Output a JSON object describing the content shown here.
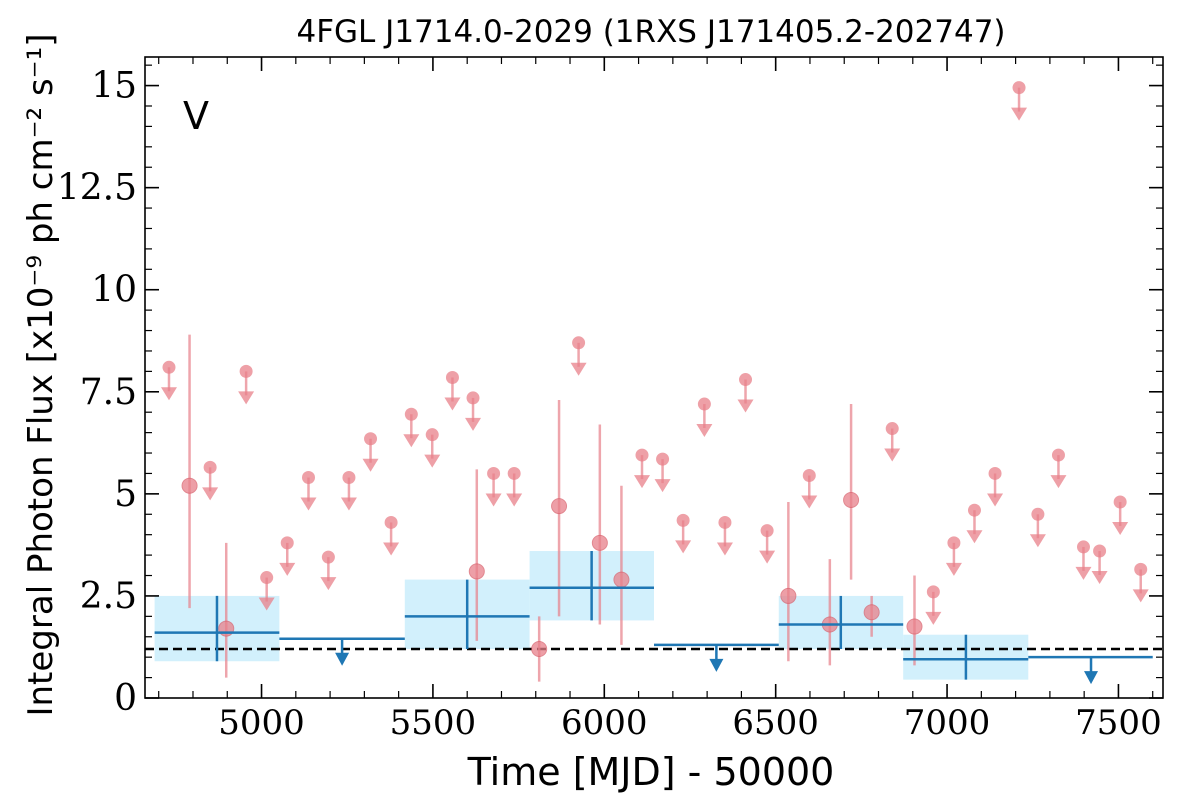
{
  "chart_data": {
    "type": "scatter",
    "title": "4FGL J1714.0-2029 (1RXS J171405.2-202747)",
    "xlabel": "Time [MJD] - 50000",
    "ylabel": "Integral Photon Flux [x10⁻⁹ ph cm⁻² s⁻¹]",
    "annotation": "V",
    "xlim": [
      4660,
      7630
    ],
    "ylim": [
      0,
      15.7
    ],
    "xticks": [
      5000,
      5500,
      6000,
      6500,
      7000,
      7500
    ],
    "xtick_labels": [
      "5000",
      "5500",
      "6000",
      "6500",
      "7000",
      "7500"
    ],
    "yticks": [
      0,
      2.5,
      5,
      7.5,
      10,
      12.5,
      15
    ],
    "ytick_labels": [
      "0",
      "2.5",
      "5",
      "7.5",
      "10",
      "12.5",
      "15"
    ],
    "dashed_line_y": 1.2,
    "colors": {
      "fine_bins": "#e8808a",
      "coarse_bins": "#1f77b4",
      "coarse_band": "#cdeefc",
      "dashed": "#000000"
    },
    "series": [
      {
        "name": "",
        "role": "fine-bin detections",
        "points": [
          {
            "x": 4790,
            "y": 5.2,
            "ylo": 2.2,
            "yhi": 8.9
          },
          {
            "x": 4897,
            "y": 1.7,
            "ylo": 0.5,
            "yhi": 3.8
          },
          {
            "x": 5628,
            "y": 3.1,
            "ylo": 1.4,
            "yhi": 5.6
          },
          {
            "x": 5810,
            "y": 1.2,
            "ylo": 0.4,
            "yhi": 2.0
          },
          {
            "x": 5868,
            "y": 4.7,
            "ylo": 2.0,
            "yhi": 7.3
          },
          {
            "x": 5987,
            "y": 3.8,
            "ylo": 1.8,
            "yhi": 6.7
          },
          {
            "x": 6050,
            "y": 2.9,
            "ylo": 1.3,
            "yhi": 5.2
          },
          {
            "x": 6537,
            "y": 2.5,
            "ylo": 0.9,
            "yhi": 4.8
          },
          {
            "x": 6658,
            "y": 1.8,
            "ylo": 0.8,
            "yhi": 3.4
          },
          {
            "x": 6720,
            "y": 4.85,
            "ylo": 2.9,
            "yhi": 7.2
          },
          {
            "x": 6780,
            "y": 2.1,
            "ylo": 1.5,
            "yhi": 2.5
          },
          {
            "x": 6905,
            "y": 1.75,
            "ylo": 0.8,
            "yhi": 3.0
          }
        ]
      },
      {
        "name": "",
        "role": "fine-bin upper limits",
        "x": [
          4730,
          4850,
          4955,
          5015,
          5075,
          5137,
          5195,
          5255,
          5318,
          5378,
          5437,
          5498,
          5557,
          5617,
          5677,
          5737,
          5925,
          6110,
          6170,
          6230,
          6292,
          6352,
          6412,
          6475,
          6598,
          6840,
          6960,
          7020,
          7080,
          7140,
          7210,
          7265,
          7325,
          7398,
          7445,
          7505,
          7565
        ],
        "y": [
          8.1,
          5.65,
          8.0,
          2.95,
          3.8,
          5.4,
          3.45,
          5.4,
          6.35,
          4.3,
          6.95,
          6.45,
          7.85,
          7.35,
          5.5,
          5.5,
          8.7,
          5.95,
          5.85,
          4.35,
          7.2,
          4.3,
          7.8,
          4.1,
          5.45,
          6.6,
          2.6,
          3.8,
          4.6,
          5.5,
          14.95,
          4.5,
          5.95,
          3.7,
          3.6,
          4.8,
          3.15
        ]
      },
      {
        "name": "",
        "role": "coarse-bin detections",
        "points": [
          {
            "x": 4870,
            "xlo": 4688,
            "xhi": 5052,
            "y": 1.6,
            "ylo": 0.9,
            "yhi": 2.5
          },
          {
            "x": 5600,
            "xlo": 5418,
            "xhi": 5782,
            "y": 2.0,
            "ylo": 1.2,
            "yhi": 2.9
          },
          {
            "x": 5963,
            "xlo": 5782,
            "xhi": 6145,
            "y": 2.7,
            "ylo": 1.9,
            "yhi": 3.6
          },
          {
            "x": 6690,
            "xlo": 6509,
            "xhi": 6872,
            "y": 1.8,
            "ylo": 1.2,
            "yhi": 2.5
          },
          {
            "x": 7055,
            "xlo": 6872,
            "xhi": 7237,
            "y": 0.95,
            "ylo": 0.45,
            "yhi": 1.55
          }
        ]
      },
      {
        "name": "",
        "role": "coarse-bin upper limits",
        "points": [
          {
            "x": 5235,
            "xlo": 5052,
            "xhi": 5418,
            "y": 1.45
          },
          {
            "x": 6327,
            "xlo": 6145,
            "xhi": 6509,
            "y": 1.3
          },
          {
            "x": 7420,
            "xlo": 7237,
            "xhi": 7600,
            "y": 1.0
          }
        ]
      }
    ]
  }
}
